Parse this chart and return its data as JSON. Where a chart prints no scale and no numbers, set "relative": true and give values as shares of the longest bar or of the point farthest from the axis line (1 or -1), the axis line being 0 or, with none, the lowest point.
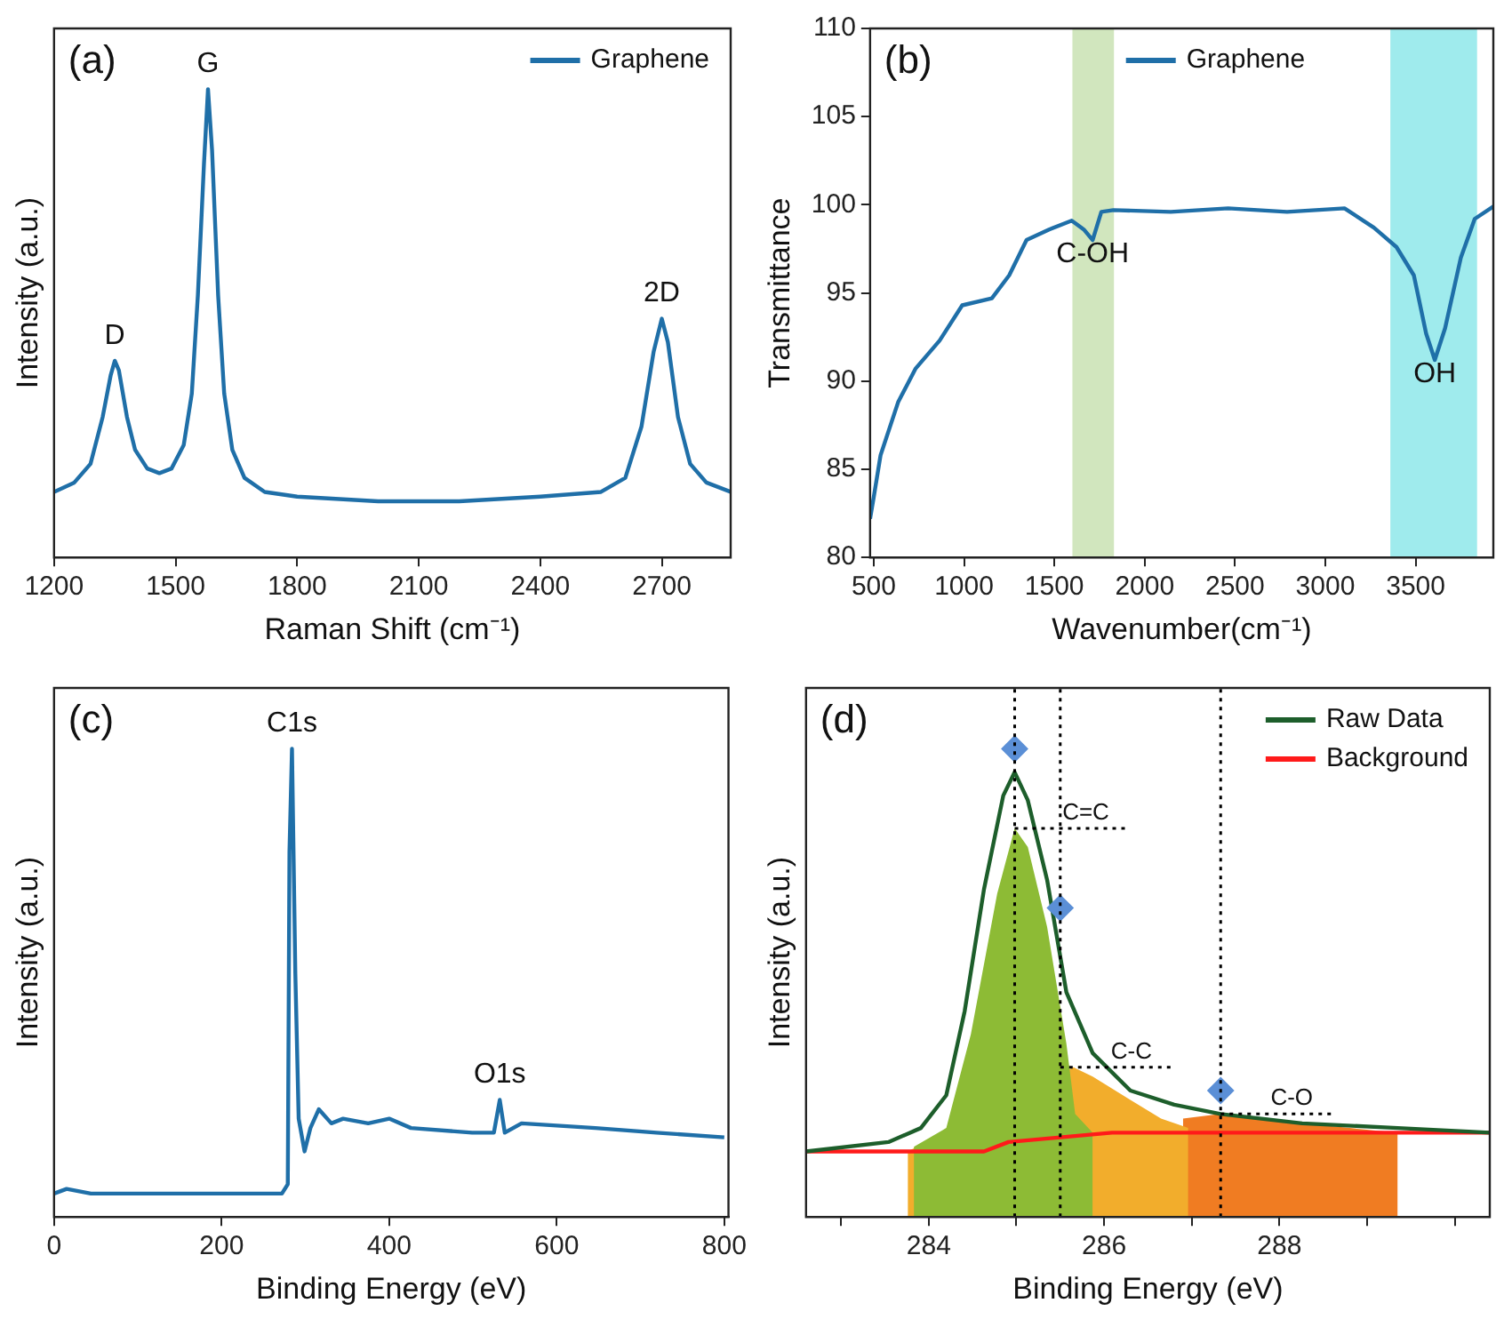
{
  "chart_data": [
    {
      "type": "line",
      "title": "(a)",
      "xlabel": "Raman Shift (cm⁻¹)",
      "ylabel": "Intensity (a.u.)",
      "relative": true,
      "tick_labels": "x",
      "grid": false,
      "legend": "top right",
      "xlim": [
        1200,
        2870
      ],
      "xticks": [
        1200,
        1500,
        1800,
        2100,
        2400,
        2700
      ],
      "x": [
        1200,
        1250,
        1290,
        1320,
        1340,
        1350,
        1360,
        1380,
        1400,
        1430,
        1460,
        1490,
        1520,
        1540,
        1555,
        1570,
        1580,
        1590,
        1605,
        1620,
        1640,
        1670,
        1720,
        1800,
        2000,
        2200,
        2400,
        2550,
        2610,
        2650,
        2680,
        2700,
        2715,
        2740,
        2770,
        2810,
        2870
      ],
      "series": [
        {
          "name": "Graphene",
          "color": "#1f6fa8",
          "values": [
            0.14,
            0.16,
            0.2,
            0.3,
            0.39,
            0.42,
            0.4,
            0.3,
            0.23,
            0.19,
            0.18,
            0.19,
            0.24,
            0.35,
            0.56,
            0.84,
            1,
            0.87,
            0.56,
            0.35,
            0.23,
            0.17,
            0.14,
            0.13,
            0.12,
            0.12,
            0.13,
            0.14,
            0.17,
            0.28,
            0.44,
            0.51,
            0.46,
            0.3,
            0.2,
            0.16,
            0.14
          ]
        }
      ],
      "annotations": [
        {
          "text": "D",
          "x": 1350,
          "y": 0.42
        },
        {
          "text": "G",
          "x": 1580,
          "y": 1
        },
        {
          "text": "2D",
          "x": 2700,
          "y": 0.51
        }
      ]
    },
    {
      "type": "line",
      "title": "(b)",
      "xlabel": "Wavenumber(cm⁻¹)",
      "ylabel": "Transmittance",
      "grid": false,
      "legend": "top",
      "xlim": [
        480,
        3930
      ],
      "xticks": [
        500,
        1000,
        1500,
        2000,
        2500,
        3000,
        3500
      ],
      "ylim": [
        80,
        110
      ],
      "yticks": [
        80,
        85,
        90,
        95,
        100,
        105,
        110
      ],
      "x": [
        480,
        500,
        538,
        635,
        731,
        865,
        990,
        1154,
        1250,
        1346,
        1471,
        1596,
        1663,
        1712,
        1760,
        1827,
        2144,
        2462,
        2788,
        3106,
        3269,
        3394,
        3490,
        3558,
        3606,
        3663,
        3750,
        3827,
        3930
      ],
      "series": [
        {
          "name": "Graphene",
          "color": "#1f6fa8",
          "values": [
            82.2,
            83.4,
            85.8,
            88.8,
            90.7,
            92.3,
            94.3,
            94.7,
            96.0,
            98.0,
            98.6,
            99.1,
            98.6,
            98.0,
            99.6,
            99.7,
            99.6,
            99.8,
            99.6,
            99.8,
            98.7,
            97.6,
            96.0,
            92.7,
            91.2,
            93.0,
            97.0,
            99.2,
            99.9
          ]
        }
      ],
      "bands": [
        {
          "axis": "x",
          "from": 1600,
          "to": 1830,
          "color": "#c9e2b3"
        },
        {
          "axis": "x",
          "from": 3360,
          "to": 3840,
          "color": "#8ee8ea"
        }
      ],
      "annotations": [
        {
          "text": "C-OH",
          "x": 1712,
          "y": 98.0
        },
        {
          "text": "OH",
          "x": 3606,
          "y": 91.2
        }
      ]
    },
    {
      "type": "line",
      "title": "(c)",
      "xlabel": "Binding Energy (eV)",
      "ylabel": "Intensity (a.u.)",
      "relative": true,
      "tick_labels": "x",
      "grid": false,
      "xlim": [
        0,
        805
      ],
      "xticks": [
        0,
        200,
        400,
        600,
        800
      ],
      "x": [
        0,
        15,
        44,
        272,
        279,
        281,
        284,
        288,
        292,
        299,
        306,
        316,
        331,
        345,
        375,
        400,
        426,
        499,
        525,
        532,
        538,
        558,
        646,
        719,
        800
      ],
      "series": [
        {
          "color": "#1f6fa8",
          "values": [
            0.05,
            0.06,
            0.05,
            0.05,
            0.07,
            0.78,
            1,
            0.52,
            0.21,
            0.14,
            0.19,
            0.23,
            0.2,
            0.21,
            0.2,
            0.21,
            0.19,
            0.18,
            0.18,
            0.25,
            0.18,
            0.2,
            0.19,
            0.18,
            0.17
          ]
        }
      ],
      "annotations": [
        {
          "text": "C1s",
          "x": 284,
          "y": 1
        },
        {
          "text": "O1s",
          "x": 532,
          "y": 0.25
        }
      ]
    },
    {
      "type": "line",
      "title": "(d)",
      "xlabel": "Binding Energy (eV)",
      "ylabel": "Intensity (a.u.)",
      "relative": true,
      "tick_labels": "x",
      "grid": false,
      "legend": "top right",
      "xlim": [
        282.6,
        290.4
      ],
      "xticks": [
        {
          "value": 283,
          "label": null
        },
        284,
        {
          "value": 285,
          "label": null
        },
        286,
        {
          "value": 287,
          "label": null
        },
        288,
        {
          "value": 289,
          "label": null
        },
        {
          "value": 290,
          "label": null
        }
      ],
      "series": [
        {
          "name": "Raw Data",
          "color": "#1d5e2b",
          "x": [
            282.6,
            283.54,
            283.91,
            284.2,
            284.41,
            284.63,
            284.85,
            284.98,
            285.13,
            285.35,
            285.57,
            285.87,
            286.3,
            286.8,
            287.33,
            288.26,
            289.35,
            290.4
          ],
          "values": [
            0.14,
            0.16,
            0.19,
            0.26,
            0.44,
            0.7,
            0.9,
            0.95,
            0.89,
            0.72,
            0.48,
            0.35,
            0.27,
            0.24,
            0.22,
            0.2,
            0.19,
            0.18
          ]
        },
        {
          "name": "Background",
          "color": "#ff1a1a",
          "x": [
            282.6,
            284.63,
            284.91,
            285.5,
            286.09,
            287.52,
            290.4
          ],
          "values": [
            0.14,
            0.14,
            0.16,
            0.17,
            0.18,
            0.18,
            0.18
          ]
        },
        {
          "type": "area",
          "color": "#8dbb35",
          "x": [
            283.83,
            284.2,
            284.48,
            284.78,
            284.98,
            285.13,
            285.35,
            285.57,
            285.67,
            285.87
          ],
          "values": [
            0.15,
            0.19,
            0.39,
            0.69,
            0.83,
            0.79,
            0.62,
            0.37,
            0.22,
            0.18
          ]
        },
        {
          "type": "area",
          "color": "#f2ad2c",
          "x": [
            283.76,
            285.65,
            285.87,
            286.3,
            286.65,
            286.96
          ],
          "values": [
            0.14,
            0.32,
            0.3,
            0.25,
            0.21,
            0.19
          ]
        },
        {
          "type": "area",
          "color": "#f07c22",
          "x": [
            286.9,
            287.33,
            288.26,
            289.35
          ],
          "values": [
            0.21,
            0.22,
            0.2,
            0.18
          ]
        },
        {
          "type": "scatter",
          "marker": "diamond",
          "color": "#5b8fd6",
          "x": [
            284.98,
            285.5,
            287.33
          ],
          "values": [
            1,
            0.66,
            0.27
          ]
        }
      ],
      "ref_lines": [
        {
          "axis": "x",
          "value": 284.98,
          "color": "#000000",
          "line_style": "dotted"
        },
        {
          "axis": "x",
          "value": 285.5,
          "color": "#000000",
          "line_style": "dotted"
        },
        {
          "axis": "x",
          "value": 287.33,
          "color": "#000000",
          "line_style": "dotted"
        }
      ],
      "annotations": [
        {
          "text": "C=C",
          "x": 284.98,
          "y": 0.83
        },
        {
          "text": "C-C",
          "x": 285.5,
          "y": 0.32
        },
        {
          "text": "C-O",
          "x": 287.33,
          "y": 0.22
        }
      ]
    }
  ]
}
